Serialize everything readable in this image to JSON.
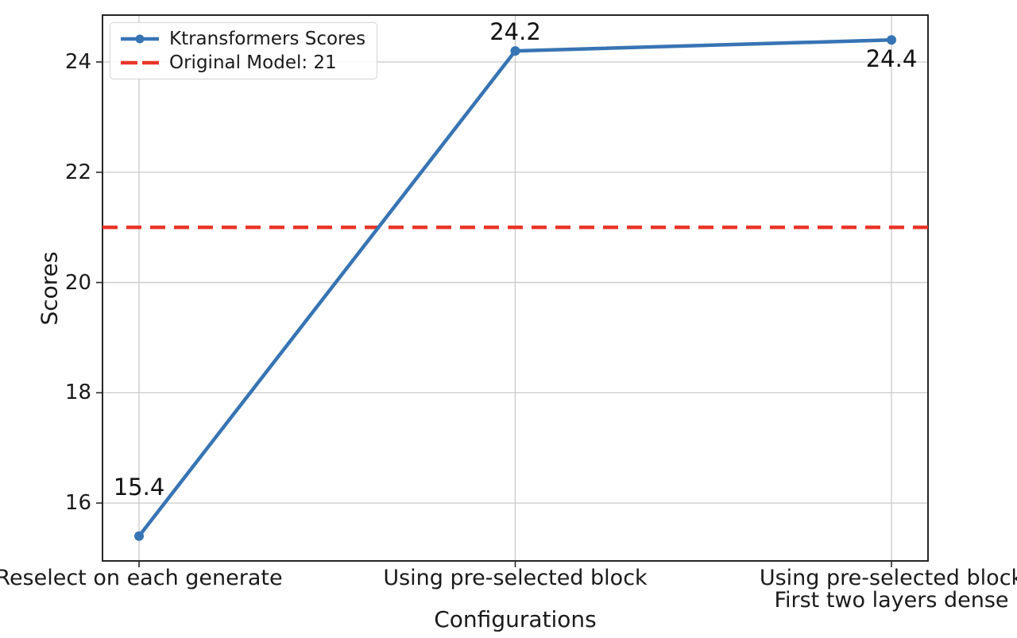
{
  "chart_data": {
    "type": "line",
    "xlabel": "Configurations",
    "ylabel": "Scores",
    "categories": [
      "Reselect on each generate",
      "Using pre-selected block",
      "Using pre-selected block\nFirst two layers dense"
    ],
    "series": [
      {
        "name": "Ktransformers Scores",
        "values": [
          15.4,
          24.2,
          24.4
        ],
        "color": "#3774b4",
        "marker": "circle"
      }
    ],
    "reference_line": {
      "label": "Original Model: 21",
      "value": 21,
      "color": "#e93528",
      "style": "dashed"
    },
    "annotations": [
      "15.4",
      "24.2",
      "24.4"
    ],
    "yticks": [
      16,
      18,
      20,
      22,
      24
    ],
    "ylim": [
      14.95,
      24.85
    ],
    "grid": true,
    "legend_position": "upper-left",
    "colors": {
      "grid": "#c9c9c9",
      "spine": "#262626",
      "text": "#1a1a1a",
      "background": "#ffffff"
    }
  }
}
